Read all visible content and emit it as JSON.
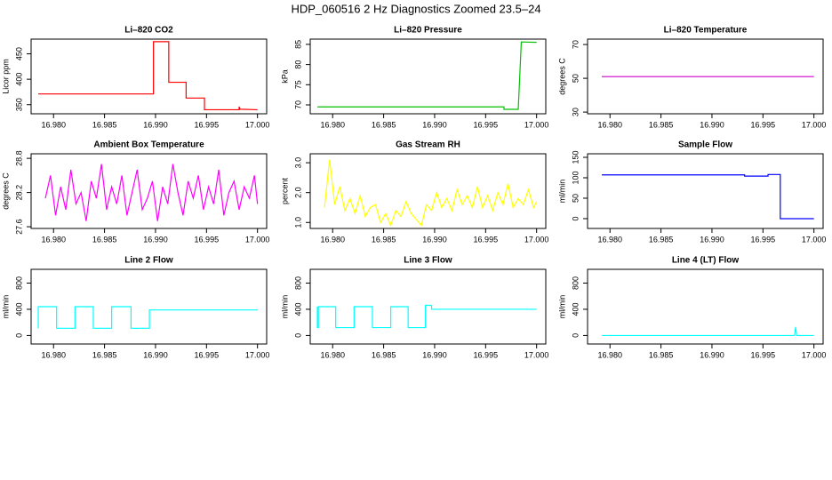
{
  "title": "HDP_060516  2 Hz Diagnostics Zoomed 23.5–24",
  "chart_data": [
    {
      "type": "line",
      "title": "Li–820 CO2",
      "ylabel": "Licor ppm",
      "color": "#ff0000",
      "x": [
        16.9785,
        16.9898,
        16.9898,
        16.9913,
        16.9913,
        16.993,
        16.993,
        16.9948,
        16.9948,
        16.9982,
        16.9982,
        16.9983,
        16.9983,
        17.0
      ],
      "values": [
        371,
        371,
        474,
        474,
        394,
        394,
        363,
        363,
        340,
        340,
        346,
        341,
        341,
        340
      ],
      "xlim": [
        16.9778,
        17.0009
      ],
      "ylim": [
        332,
        479
      ],
      "xticks": [
        {
          "value": 16.98,
          "label": "16.980"
        },
        16.985,
        {
          "value": 16.99,
          "label": "16.990"
        },
        16.995,
        {
          "value": 17.0,
          "label": "17.000"
        }
      ],
      "yticks": [
        350,
        400,
        450
      ]
    },
    {
      "type": "line",
      "title": "Li–820 Pressure",
      "ylabel": "kPa",
      "color": "#00c000",
      "x": [
        16.9785,
        16.9968,
        16.9968,
        16.9982,
        16.9985,
        17.0
      ],
      "values": [
        69.5,
        69.5,
        68.9,
        68.9,
        85.6,
        85.5
      ],
      "xlim": [
        16.9778,
        17.0009
      ],
      "ylim": [
        67.8,
        86.3
      ],
      "xticks": [
        {
          "value": 16.98,
          "label": "16.980"
        },
        16.985,
        {
          "value": 16.99,
          "label": "16.990"
        },
        16.995,
        {
          "value": 17.0,
          "label": "17.000"
        }
      ],
      "yticks": [
        70,
        75,
        80,
        85
      ]
    },
    {
      "type": "line",
      "title": "Li–820 Temperature",
      "ylabel": "degrees C",
      "color": "#cc00cc",
      "x": [
        16.9792,
        17.0
      ],
      "values": [
        51,
        51
      ],
      "xlim": [
        16.9778,
        17.0009
      ],
      "ylim": [
        29,
        73.2
      ],
      "xticks": [
        {
          "value": 16.98,
          "label": "16.980"
        },
        16.985,
        {
          "value": 16.99,
          "label": "16.990"
        },
        16.995,
        {
          "value": 17.0,
          "label": "17.000"
        }
      ],
      "yticks": [
        30,
        50,
        70
      ]
    },
    {
      "type": "line",
      "title": "Ambient Box Temperature",
      "ylabel": "degrees C",
      "color": "#ff00ff",
      "x": [
        16.9792,
        16.9797,
        16.9802,
        16.9807,
        16.9812,
        16.9817,
        16.9822,
        16.9827,
        16.9832,
        16.9837,
        16.9842,
        16.9847,
        16.9852,
        16.9857,
        16.9862,
        16.9867,
        16.9872,
        16.9877,
        16.9882,
        16.9887,
        16.9892,
        16.9897,
        16.9902,
        16.9907,
        16.9912,
        16.9917,
        16.9922,
        16.9927,
        16.9932,
        16.9937,
        16.9942,
        16.9947,
        16.9952,
        16.9957,
        16.9962,
        16.9967,
        16.9972,
        16.9977,
        16.9982,
        16.9987,
        16.9992,
        16.9997,
        17.0
      ],
      "values": [
        28.1,
        28.5,
        27.8,
        28.3,
        27.9,
        28.6,
        28.0,
        28.2,
        27.7,
        28.4,
        28.1,
        28.7,
        27.9,
        28.3,
        28.0,
        28.5,
        27.8,
        28.2,
        28.6,
        27.9,
        28.1,
        28.4,
        27.7,
        28.3,
        28.0,
        28.7,
        28.2,
        27.8,
        28.4,
        28.1,
        28.5,
        27.9,
        28.3,
        28.0,
        28.6,
        27.8,
        28.2,
        28.4,
        27.9,
        28.3,
        28.1,
        28.5,
        28.0
      ],
      "xlim": [
        16.9778,
        17.0009
      ],
      "ylim": [
        27.57,
        28.88
      ],
      "xticks": [
        {
          "value": 16.98,
          "label": "16.980"
        },
        16.985,
        {
          "value": 16.99,
          "label": "16.990"
        },
        16.995,
        {
          "value": 17.0,
          "label": "17.000"
        }
      ],
      "yticks": [
        27.6,
        28.2,
        28.8
      ]
    },
    {
      "type": "line",
      "title": "Gas Stream RH",
      "ylabel": "percent",
      "color": "#ffff00",
      "x": [
        16.9792,
        16.9797,
        16.9802,
        16.9807,
        16.9812,
        16.9817,
        16.9822,
        16.9827,
        16.9832,
        16.9837,
        16.9842,
        16.9847,
        16.9852,
        16.9857,
        16.9862,
        16.9867,
        16.9872,
        16.9877,
        16.9882,
        16.9887,
        16.9892,
        16.9897,
        16.9902,
        16.9907,
        16.9912,
        16.9917,
        16.9922,
        16.9927,
        16.9932,
        16.9937,
        16.9942,
        16.9947,
        16.9952,
        16.9957,
        16.9962,
        16.9967,
        16.9972,
        16.9977,
        16.9982,
        16.9987,
        16.9992,
        16.9997,
        17.0
      ],
      "values": [
        1.5,
        3.1,
        1.6,
        2.2,
        1.4,
        1.8,
        1.3,
        1.9,
        1.2,
        1.5,
        1.6,
        1.0,
        1.3,
        0.9,
        1.4,
        1.2,
        1.7,
        1.3,
        1.1,
        0.9,
        1.6,
        1.4,
        2.0,
        1.5,
        1.8,
        1.4,
        2.1,
        1.6,
        1.9,
        1.5,
        2.2,
        1.5,
        1.9,
        1.4,
        2.0,
        1.6,
        2.3,
        1.5,
        1.8,
        1.6,
        2.1,
        1.5,
        1.7
      ],
      "xlim": [
        16.9778,
        17.0009
      ],
      "ylim": [
        0.8,
        3.3
      ],
      "xticks": [
        {
          "value": 16.98,
          "label": "16.980"
        },
        16.985,
        {
          "value": 16.99,
          "label": "16.990"
        },
        16.995,
        {
          "value": 17.0,
          "label": "17.000"
        }
      ],
      "yticks": [
        {
          "value": 1,
          "label": "1.0"
        },
        {
          "value": 2,
          "label": "2.0"
        },
        {
          "value": 3,
          "label": "3.0"
        }
      ]
    },
    {
      "type": "line",
      "title": "Sample Flow",
      "ylabel": "ml/min",
      "color": "#0000ff",
      "x": [
        16.9792,
        16.9932,
        16.9932,
        16.9955,
        16.9955,
        16.9967,
        16.9967,
        17.0
      ],
      "values": [
        107,
        107,
        104,
        104,
        108,
        108,
        0,
        0
      ],
      "xlim": [
        16.9778,
        17.0009
      ],
      "ylim": [
        -24,
        158.7
      ],
      "xticks": [
        {
          "value": 16.98,
          "label": "16.980"
        },
        16.985,
        {
          "value": 16.99,
          "label": "16.990"
        },
        16.995,
        {
          "value": 17.0,
          "label": "17.000"
        }
      ],
      "yticks": [
        0,
        50,
        100,
        150
      ]
    },
    {
      "type": "line",
      "title": "Line 2 Flow",
      "ylabel": "ml/min",
      "color": "#00ffff",
      "x": [
        16.9785,
        16.9785,
        16.9803,
        16.9803,
        16.9821,
        16.9821,
        16.9839,
        16.9839,
        16.9857,
        16.9857,
        16.9876,
        16.9876,
        16.9892,
        16.9894,
        16.9894,
        17.0
      ],
      "values": [
        110,
        440,
        440,
        110,
        110,
        440,
        440,
        110,
        110,
        440,
        440,
        110,
        110,
        110,
        390,
        390
      ],
      "xlim": [
        16.9778,
        17.0009
      ],
      "ylim": [
        -130,
        1010
      ],
      "xticks": [
        {
          "value": 16.98,
          "label": "16.980"
        },
        16.985,
        {
          "value": 16.99,
          "label": "16.990"
        },
        16.995,
        {
          "value": 17.0,
          "label": "17.000"
        }
      ],
      "yticks": [
        0,
        400,
        800
      ]
    },
    {
      "type": "line",
      "title": "Line 3 Flow",
      "ylabel": "ml/min",
      "color": "#00ffff",
      "x": [
        16.9785,
        16.9785,
        16.9786,
        16.9786,
        16.9803,
        16.9803,
        16.9821,
        16.9821,
        16.9839,
        16.9839,
        16.9857,
        16.9857,
        16.9874,
        16.9874,
        16.9891,
        16.9891,
        16.9897,
        16.9897,
        17.0
      ],
      "values": [
        440,
        120,
        120,
        440,
        440,
        120,
        120,
        440,
        440,
        120,
        120,
        440,
        440,
        120,
        120,
        460,
        460,
        400,
        400
      ],
      "xlim": [
        16.9778,
        17.0009
      ],
      "ylim": [
        -130,
        1010
      ],
      "xticks": [
        {
          "value": 16.98,
          "label": "16.980"
        },
        16.985,
        {
          "value": 16.99,
          "label": "16.990"
        },
        16.995,
        {
          "value": 17.0,
          "label": "17.000"
        }
      ],
      "yticks": [
        0,
        400,
        800
      ]
    },
    {
      "type": "line",
      "title": "Line 4 (LT) Flow",
      "ylabel": "ml/min",
      "color": "#00ffff",
      "x": [
        16.9792,
        16.9981,
        16.9982,
        16.9983,
        17.0
      ],
      "values": [
        0,
        0,
        130,
        0,
        0
      ],
      "xlim": [
        16.9778,
        17.0009
      ],
      "ylim": [
        -130,
        1010
      ],
      "xticks": [
        {
          "value": 16.98,
          "label": "16.980"
        },
        16.985,
        {
          "value": 16.99,
          "label": "16.990"
        },
        16.995,
        {
          "value": 17.0,
          "label": "17.000"
        }
      ],
      "yticks": [
        0,
        400,
        800
      ]
    }
  ]
}
